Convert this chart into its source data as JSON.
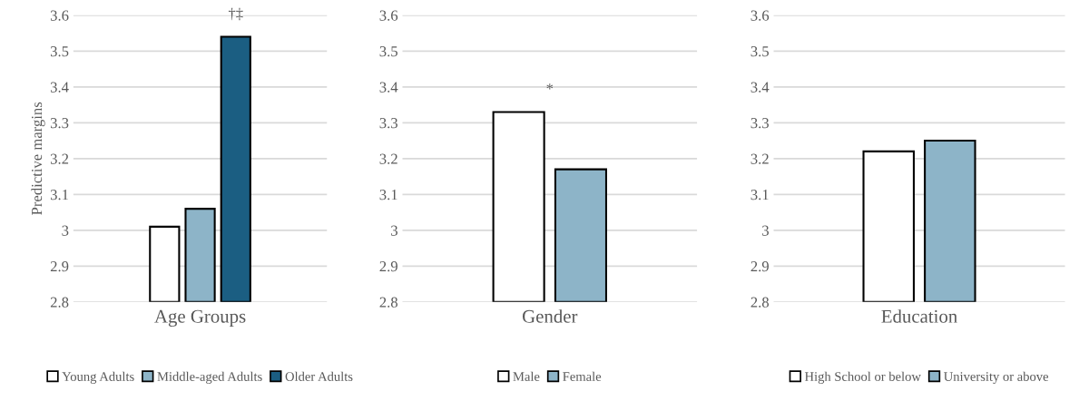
{
  "chart_data": [
    {
      "type": "bar",
      "ylabel": "Predictive margins",
      "categories": [
        "Age Groups"
      ],
      "ylim": [
        2.8,
        3.6
      ],
      "yticks": [
        2.8,
        2.9,
        3,
        3.1,
        3.2,
        3.3,
        3.4,
        3.5,
        3.6
      ],
      "grid": "y",
      "legend": "bottom",
      "annotations": [
        "†‡"
      ],
      "series": [
        {
          "name": "Young Adults",
          "color": "#ffffff",
          "values": [
            3.01
          ]
        },
        {
          "name": "Middle-aged Adults",
          "color": "#8db4c8",
          "values": [
            3.06
          ]
        },
        {
          "name": "Older Adults",
          "color": "#1b5e82",
          "values": [
            3.54
          ]
        }
      ]
    },
    {
      "type": "bar",
      "categories": [
        "Gender"
      ],
      "ylim": [
        2.8,
        3.6
      ],
      "yticks": [
        2.8,
        2.9,
        3,
        3.1,
        3.2,
        3.3,
        3.4,
        3.5,
        3.6
      ],
      "grid": "y",
      "legend": "bottom",
      "annotations": [
        "*"
      ],
      "series": [
        {
          "name": "Male",
          "color": "#ffffff",
          "values": [
            3.33
          ]
        },
        {
          "name": "Female",
          "color": "#8db4c8",
          "values": [
            3.17
          ]
        }
      ]
    },
    {
      "type": "bar",
      "categories": [
        "Education"
      ],
      "ylim": [
        2.8,
        3.6
      ],
      "yticks": [
        2.8,
        2.9,
        3,
        3.1,
        3.2,
        3.3,
        3.4,
        3.5,
        3.6
      ],
      "grid": "y",
      "legend": "bottom",
      "series": [
        {
          "name": "High School or below",
          "color": "#ffffff",
          "values": [
            3.22
          ]
        },
        {
          "name": "University or above",
          "color": "#8db4c8",
          "values": [
            3.25
          ]
        }
      ]
    }
  ]
}
